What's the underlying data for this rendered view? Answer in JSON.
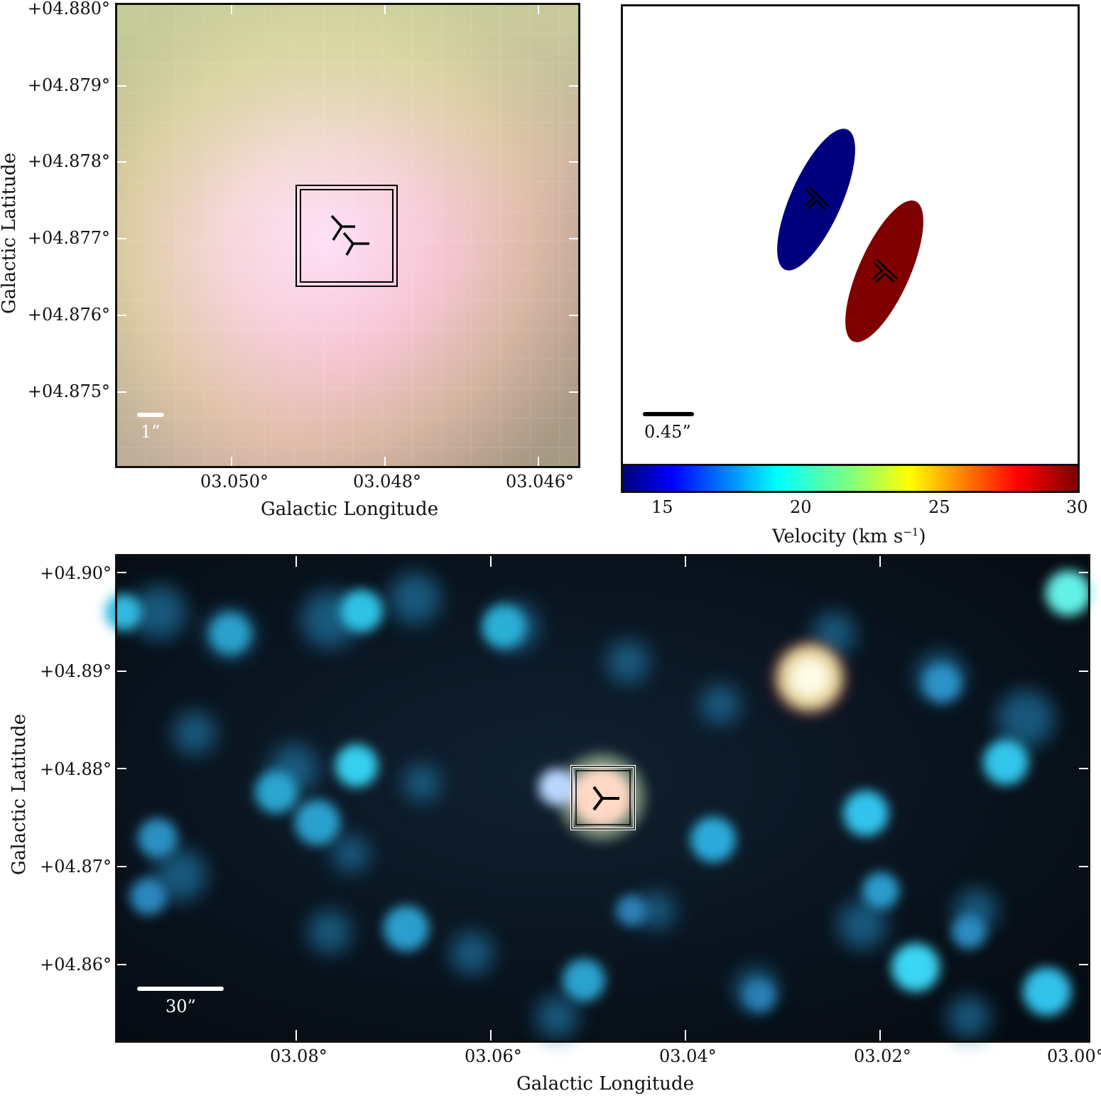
{
  "panel_a": {
    "y_ticks": [
      "+04.880°",
      "+04.879°",
      "+04.878°",
      "+04.877°",
      "+04.876°",
      "+04.875°"
    ],
    "x_ticks": [
      "03.050°",
      "03.048°",
      "03.046°"
    ],
    "x_label": "Galactic Longitude",
    "y_label": "Galactic Latitude",
    "scalebar_label": "1”",
    "scalebar_color": "#ffffff"
  },
  "panel_b": {
    "scalebar_label": "0.45”",
    "scalebar_color": "#000000",
    "colorbar_ticks": [
      "15",
      "20",
      "25",
      "30"
    ],
    "colorbar_label": "Velocity (km s",
    "colorbar_label_sup": "−1",
    "colorbar_label_end": ")",
    "colorbar_range": [
      13.5,
      30
    ],
    "blue_component_color": "#00007f",
    "red_component_color": "#7f0000"
  },
  "panel_c": {
    "y_ticks": [
      "+04.90°",
      "+04.89°",
      "+04.88°",
      "+04.87°",
      "+04.86°"
    ],
    "x_ticks": [
      "03.08°",
      "03.06°",
      "03.04°",
      "03.02°",
      "03.00°"
    ],
    "x_label": "Galactic Longitude",
    "y_label": "Galactic Latitude",
    "scalebar_label": "30”",
    "scalebar_color": "#ffffff"
  }
}
